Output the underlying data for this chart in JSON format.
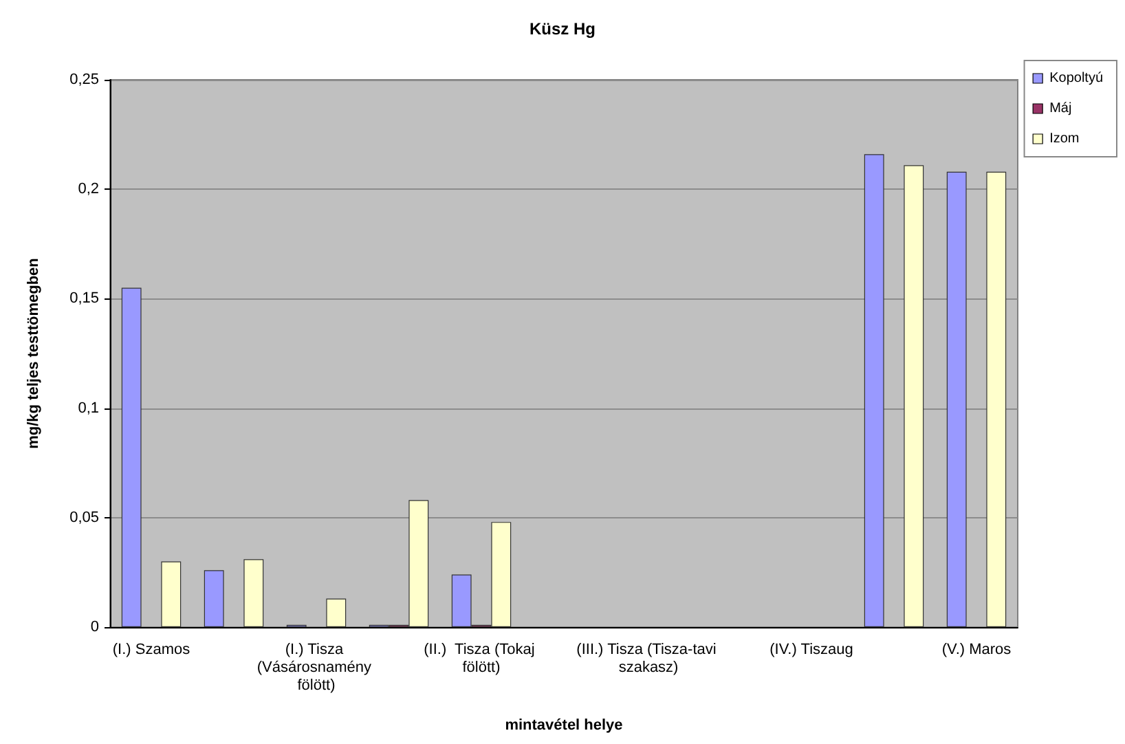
{
  "chart_data": {
    "type": "bar",
    "title": "Küsz Hg",
    "xlabel": "mintavétel helye",
    "ylabel": "mg/kg teljes testtömegben",
    "categories": [
      "(I.) Szamos",
      null,
      "(I.) Tisza (Vásárosnamény fölött)",
      null,
      "(II.)  Tisza (Tokaj fölött)",
      null,
      "(III.) Tisza (Tisza-tavi szakasz)",
      null,
      "(IV.) Tiszaug",
      null,
      "(V.) Maros"
    ],
    "series": [
      {
        "name": "Kopoltyú",
        "color": "#9999ff",
        "values": [
          0.155,
          0.026,
          0.001,
          0.001,
          0.024,
          null,
          null,
          null,
          null,
          0.216,
          0.208
        ]
      },
      {
        "name": "Máj",
        "color": "#993366",
        "values": [
          null,
          null,
          null,
          0.001,
          0.001,
          null,
          null,
          null,
          null,
          null,
          null
        ]
      },
      {
        "name": "Izom",
        "color": "#ffffcc",
        "values": [
          0.03,
          0.031,
          0.013,
          0.058,
          0.048,
          null,
          null,
          null,
          null,
          0.211,
          0.208
        ]
      }
    ],
    "ylim": [
      0,
      0.25
    ],
    "yticks": [
      0,
      {
        "value": 0.05,
        "label": "0,05"
      },
      {
        "value": 0.1,
        "label": "0,1"
      },
      {
        "value": 0.15,
        "label": "0,15"
      },
      {
        "value": 0.2,
        "label": "0,2"
      },
      {
        "value": 0.25,
        "label": "0,25"
      }
    ],
    "grid": "y",
    "legend": "top right"
  }
}
